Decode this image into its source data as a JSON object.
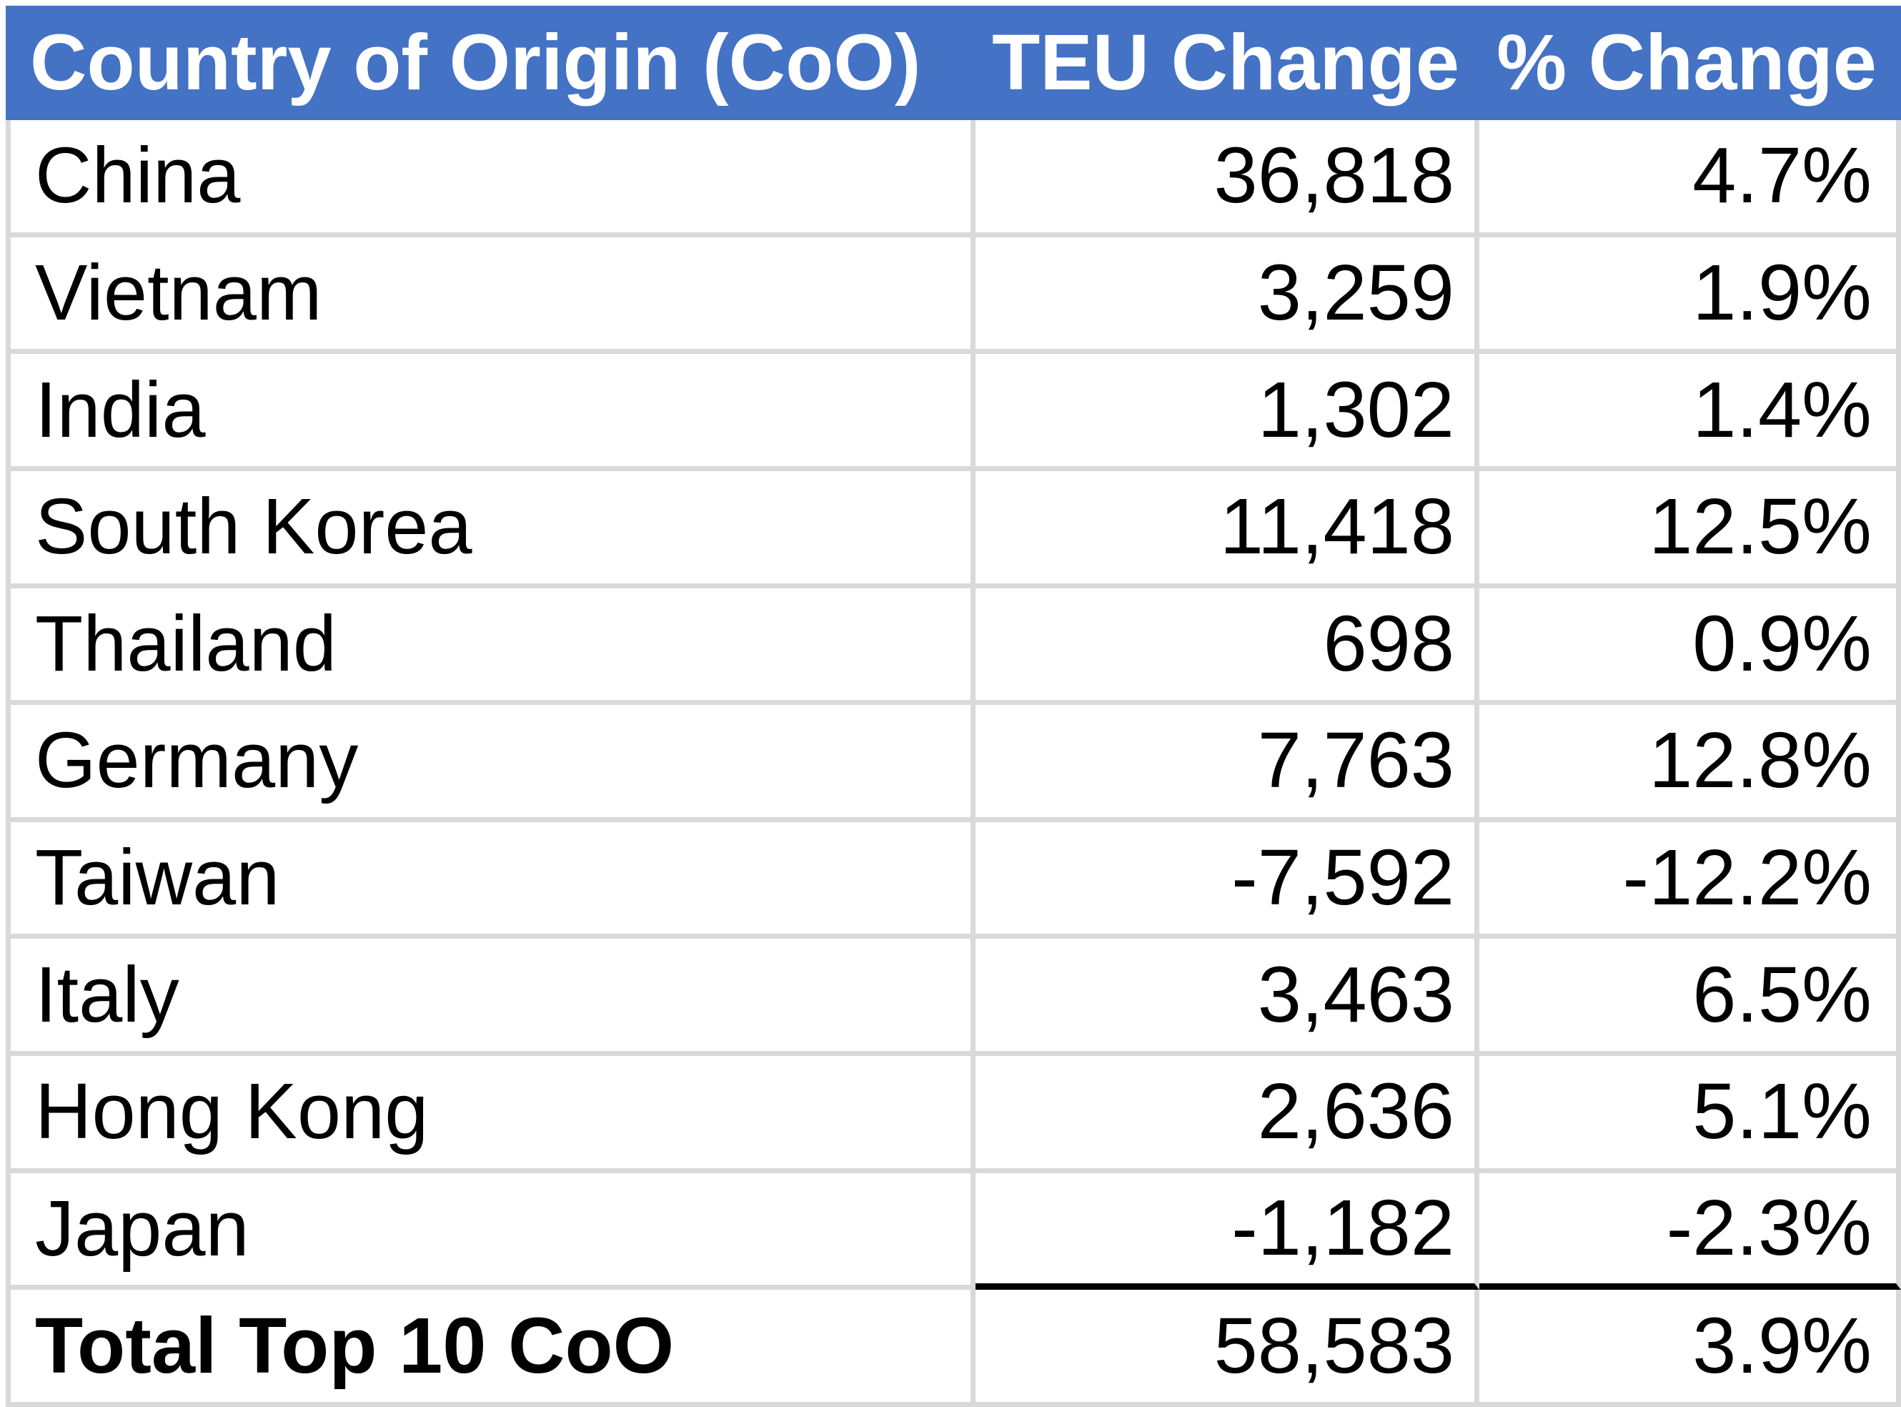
{
  "colors": {
    "header_bg": "#4472C4",
    "header_text": "#FFFFFF",
    "body_text": "#000000",
    "grid_line": "#D9D9D9",
    "total_separator_line": "#000000"
  },
  "table": {
    "headers": {
      "country": "Country of Origin (CoO)",
      "teu": "TEU Change",
      "pct": "% Change"
    },
    "rows": [
      {
        "country": "China",
        "teu": "36,818",
        "pct": "4.7%"
      },
      {
        "country": "Vietnam",
        "teu": "3,259",
        "pct": "1.9%"
      },
      {
        "country": "India",
        "teu": "1,302",
        "pct": "1.4%"
      },
      {
        "country": "South Korea",
        "teu": "11,418",
        "pct": "12.5%"
      },
      {
        "country": "Thailand",
        "teu": "698",
        "pct": "0.9%"
      },
      {
        "country": "Germany",
        "teu": "7,763",
        "pct": "12.8%"
      },
      {
        "country": "Taiwan",
        "teu": "-7,592",
        "pct": "-12.2%"
      },
      {
        "country": "Italy",
        "teu": "3,463",
        "pct": "6.5%"
      },
      {
        "country": "Hong Kong",
        "teu": "2,636",
        "pct": "5.1%"
      },
      {
        "country": "Japan",
        "teu": "-1,182",
        "pct": "-2.3%"
      }
    ],
    "total": {
      "country": "Total Top 10 CoO",
      "teu": "58,583",
      "pct": "3.9%"
    }
  },
  "chart_data": {
    "type": "table",
    "columns": [
      "Country of Origin (CoO)",
      "TEU Change",
      "% Change"
    ],
    "rows": [
      [
        "China",
        36818,
        4.7
      ],
      [
        "Vietnam",
        3259,
        1.9
      ],
      [
        "India",
        1302,
        1.4
      ],
      [
        "South Korea",
        11418,
        12.5
      ],
      [
        "Thailand",
        698,
        0.9
      ],
      [
        "Germany",
        7763,
        12.8
      ],
      [
        "Taiwan",
        -7592,
        -12.2
      ],
      [
        "Italy",
        3463,
        6.5
      ],
      [
        "Hong Kong",
        2636,
        5.1
      ],
      [
        "Japan",
        -1182,
        -2.3
      ]
    ],
    "total_row": [
      "Total Top 10 CoO",
      58583,
      3.9
    ]
  }
}
